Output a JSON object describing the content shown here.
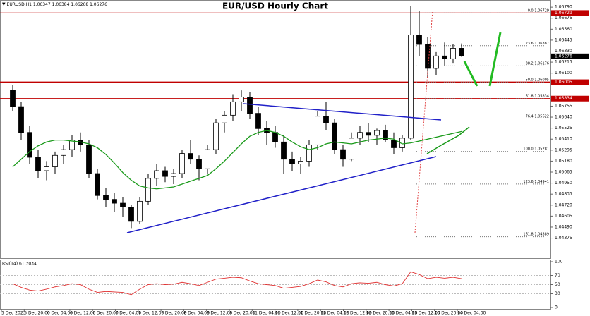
{
  "chart_data": {
    "type": "candlestick",
    "title": "EUR/USD Hourly Chart",
    "symbol": "EURUSD,H1",
    "header_ohlc": [
      1.06347,
      1.06384,
      1.06268,
      1.06276
    ],
    "ylim": [
      1.0418,
      1.0685
    ],
    "yticks": [
      {
        "value": 1.0679,
        "label": "1.06790"
      },
      1.06675,
      {
        "value": 1.0656,
        "label": "1.06560"
      },
      1.06445,
      {
        "value": 1.0633,
        "label": "1.06330"
      },
      1.06215,
      {
        "value": 1.061,
        "label": "1.06100"
      },
      1.05755,
      {
        "value": 1.0564,
        "label": "1.05640"
      },
      1.05525,
      {
        "value": 1.0541,
        "label": "1.05410"
      },
      1.05295,
      {
        "value": 1.0518,
        "label": "1.05180"
      },
      1.05065,
      {
        "value": 1.0495,
        "label": "1.04950"
      },
      1.04835,
      {
        "value": 1.0472,
        "label": "1.04720"
      },
      1.04605,
      {
        "value": 1.0449,
        "label": "1.04490"
      },
      1.04375
    ],
    "x_labels": [
      "5 Dec 2023",
      "5 Dec 20:00",
      "6 Dec 04:00",
      "6 Dec 12:00",
      "6 Dec 20:00",
      "7 Dec 04:00",
      "7 Dec 12:00",
      "7 Dec 20:00",
      "8 Dec 04:00",
      "8 Dec 12:00",
      "8 Dec 20:00",
      "11 Dec 04:00",
      "11 Dec 12:00",
      "11 Dec 20:00",
      "12 Dec 04:00",
      "12 Dec 12:00",
      "12 Dec 20:00",
      "13 Dec 04:00",
      "13 Dec 12:00",
      "13 Dec 20:00",
      "14 Dec 04:00"
    ],
    "candles": [
      [
        1.0592,
        1.0598,
        1.057,
        1.0575
      ],
      [
        1.0575,
        1.058,
        1.054,
        1.0548
      ],
      [
        1.0548,
        1.0555,
        1.0515,
        1.0522
      ],
      [
        1.0522,
        1.053,
        1.05,
        1.0508
      ],
      [
        1.0508,
        1.0518,
        1.0498,
        1.0512
      ],
      [
        1.0512,
        1.0528,
        1.0505,
        1.0524
      ],
      [
        1.0524,
        1.0535,
        1.0515,
        1.053
      ],
      [
        1.053,
        1.0545,
        1.0522,
        1.054
      ],
      [
        1.054,
        1.0548,
        1.0528,
        1.0535
      ],
      [
        1.0535,
        1.054,
        1.05,
        1.0505
      ],
      [
        1.0505,
        1.051,
        1.0478,
        1.0482
      ],
      [
        1.0482,
        1.049,
        1.047,
        1.0478
      ],
      [
        1.0478,
        1.0485,
        1.0465,
        1.0474
      ],
      [
        1.0474,
        1.048,
        1.046,
        1.047
      ],
      [
        1.047,
        1.0472,
        1.0448,
        1.0455
      ],
      [
        1.0455,
        1.048,
        1.0452,
        1.0476
      ],
      [
        1.0476,
        1.0505,
        1.0472,
        1.05
      ],
      [
        1.05,
        1.0515,
        1.0492,
        1.0508
      ],
      [
        1.0508,
        1.0512,
        1.0496,
        1.0502
      ],
      [
        1.0502,
        1.051,
        1.0494,
        1.0505
      ],
      [
        1.0505,
        1.053,
        1.05,
        1.0526
      ],
      [
        1.0526,
        1.054,
        1.0515,
        1.052
      ],
      [
        1.052,
        1.0524,
        1.0498,
        1.051
      ],
      [
        1.051,
        1.0535,
        1.0505,
        1.053
      ],
      [
        1.053,
        1.0562,
        1.0525,
        1.0558
      ],
      [
        1.0558,
        1.057,
        1.0548,
        1.0566
      ],
      [
        1.0566,
        1.0588,
        1.056,
        1.058
      ],
      [
        1.058,
        1.0592,
        1.057,
        1.0585
      ],
      [
        1.0585,
        1.059,
        1.0562,
        1.0568
      ],
      [
        1.0568,
        1.0575,
        1.0545,
        1.0552
      ],
      [
        1.0552,
        1.056,
        1.0535,
        1.0548
      ],
      [
        1.0548,
        1.0555,
        1.0532,
        1.0538
      ],
      [
        1.0538,
        1.0545,
        1.0505,
        1.052
      ],
      [
        1.052,
        1.0528,
        1.0508,
        1.0515
      ],
      [
        1.0515,
        1.0522,
        1.0505,
        1.0518
      ],
      [
        1.0518,
        1.054,
        1.0512,
        1.0535
      ],
      [
        1.0535,
        1.057,
        1.053,
        1.0565
      ],
      [
        1.0565,
        1.058,
        1.055,
        1.0558
      ],
      [
        1.0558,
        1.0562,
        1.0525,
        1.053
      ],
      [
        1.053,
        1.0535,
        1.0512,
        1.052
      ],
      [
        1.052,
        1.0548,
        1.0518,
        1.0542
      ],
      [
        1.0542,
        1.0555,
        1.0535,
        1.0548
      ],
      [
        1.0548,
        1.0558,
        1.0538,
        1.0545
      ],
      [
        1.0545,
        1.0552,
        1.0535,
        1.055
      ],
      [
        1.055,
        1.0556,
        1.0538,
        1.054
      ],
      [
        1.054,
        1.0548,
        1.0525,
        1.0532
      ],
      [
        1.0532,
        1.0545,
        1.0528,
        1.0542
      ],
      [
        1.0542,
        1.068,
        1.054,
        1.065
      ],
      [
        1.065,
        1.0675,
        1.0628,
        1.064
      ],
      [
        1.064,
        1.0648,
        1.0605,
        1.0615
      ],
      [
        1.0615,
        1.0632,
        1.0608,
        1.0628
      ],
      [
        1.0628,
        1.0642,
        1.0618,
        1.0625
      ],
      [
        1.0625,
        1.064,
        1.062,
        1.0636
      ],
      [
        1.0636,
        1.0641,
        1.0627,
        1.0628
      ]
    ],
    "ma": {
      "color": "#1a9a1a",
      "values": [
        1.0512,
        1.052,
        1.0528,
        1.0534,
        1.0538,
        1.054,
        1.054,
        1.0539,
        1.0538,
        1.0536,
        1.0532,
        1.0525,
        1.0516,
        1.0506,
        1.0498,
        1.0492,
        1.049,
        1.0489,
        1.049,
        1.0491,
        1.0494,
        1.0497,
        1.05,
        1.0503,
        1.051,
        1.0518,
        1.0527,
        1.0536,
        1.0544,
        1.0548,
        1.055,
        1.0548,
        1.0544,
        1.0538,
        1.0533,
        1.053,
        1.0532,
        1.0536,
        1.0538,
        1.0537,
        1.0536,
        1.0538,
        1.054,
        1.0541,
        1.0542,
        1.0541,
        1.0536,
        1.0537,
        1.0539,
        1.0541,
        1.0543,
        1.0545,
        1.0547,
        1.0549
      ]
    },
    "red_levels": [
      {
        "value": 1.06729,
        "label": "1.06729"
      },
      {
        "value": 1.06005,
        "label": "1.06005"
      },
      {
        "value": 1.05834,
        "label": "1.05834"
      }
    ],
    "fib": [
      {
        "label": "0.0",
        "value": 1.06729
      },
      {
        "label": "23.6",
        "value": 1.06387
      },
      {
        "label": "38.2",
        "value": 1.06176
      },
      {
        "label": "50.0",
        "value": 1.06005
      },
      {
        "label": "61.8",
        "value": 1.05834
      },
      {
        "label": "76.4",
        "value": 1.05622
      },
      {
        "label": "100.0",
        "value": 1.05281
      },
      {
        "label": "123.6",
        "value": 1.04941
      },
      {
        "label": "161.8",
        "value": 1.04389
      }
    ],
    "rsi": {
      "label": "RSI(14) 61.3034",
      "color": "#e03030",
      "ylim": [
        0,
        100
      ],
      "yticks": [
        100,
        70,
        50,
        30,
        0
      ],
      "values": [
        52,
        44,
        38,
        36,
        40,
        45,
        48,
        52,
        50,
        40,
        33,
        35,
        34,
        33,
        28,
        40,
        50,
        52,
        50,
        51,
        55,
        52,
        48,
        55,
        62,
        64,
        66,
        65,
        58,
        52,
        50,
        48,
        42,
        44,
        46,
        52,
        60,
        56,
        48,
        45,
        52,
        54,
        53,
        55,
        50,
        47,
        52,
        78,
        72,
        63,
        66,
        64,
        66,
        63
      ]
    }
  }
}
